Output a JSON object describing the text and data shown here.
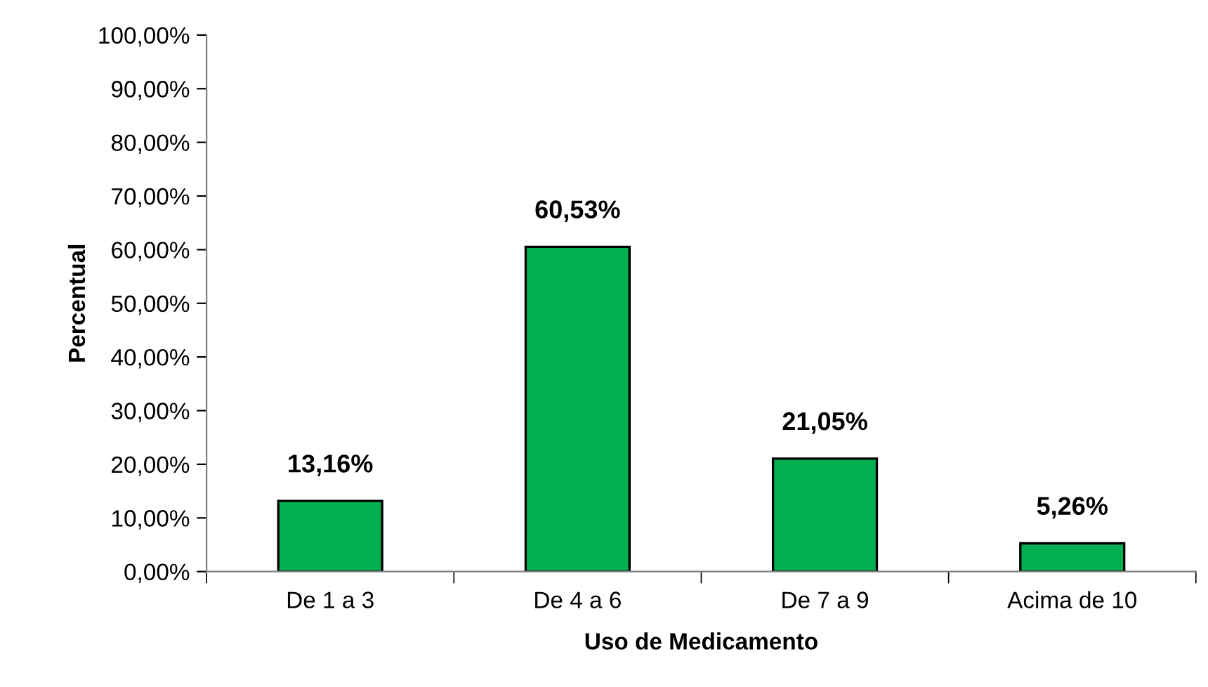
{
  "chart_data": {
    "type": "bar",
    "xlabel": "Uso de Medicamento",
    "ylabel": "Percentual",
    "categories": [
      "De 1 a 3",
      "De 4 a 6",
      "De 7 a 9",
      "Acima de 10"
    ],
    "values": [
      13.16,
      60.53,
      21.05,
      5.26
    ],
    "value_labels": [
      "13,16%",
      "60,53%",
      "21,05%",
      "5,26%"
    ],
    "color": "#00b050",
    "ylim": [
      0,
      100
    ],
    "yticks": [
      {
        "value": 0,
        "label": "0,00%"
      },
      {
        "value": 10,
        "label": "10,00%"
      },
      {
        "value": 20,
        "label": "20,00%"
      },
      {
        "value": 30,
        "label": "30,00%"
      },
      {
        "value": 40,
        "label": "40,00%"
      },
      {
        "value": 50,
        "label": "50,00%"
      },
      {
        "value": 60,
        "label": "60,00%"
      },
      {
        "value": 70,
        "label": "70,00%"
      },
      {
        "value": 80,
        "label": "80,00%"
      },
      {
        "value": 90,
        "label": "90,00%"
      },
      {
        "value": 100,
        "label": "100,00%"
      }
    ],
    "grid": false,
    "legend": false
  }
}
